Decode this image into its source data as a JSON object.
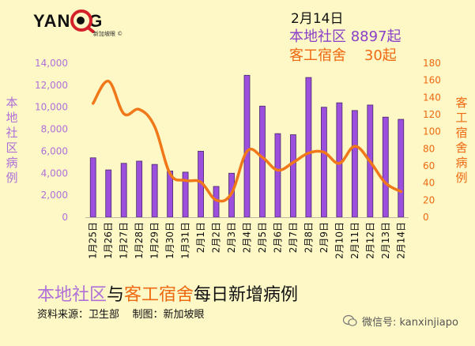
{
  "brand": {
    "logo_text": "YAN  SG",
    "logo_sub": "新加坡眼 ©"
  },
  "header": {
    "date": "2月14日",
    "line1": "本地社区 8897起",
    "line2": "客工宿舍    30起"
  },
  "footer": {
    "title_part1": "本地社区",
    "title_part2": "与",
    "title_part3": "客工宿舍",
    "title_part4": "每日新增病例",
    "source": "资料来源：卫生部    制图：新加坡眼",
    "wechat": "微信号: kanxinjiapo"
  },
  "chart_data": {
    "type": "bar+line",
    "title": "本地社区与客工宿舍每日新增病例",
    "categories": [
      "1月25日",
      "1月26日",
      "1月27日",
      "1月28日",
      "1月29日",
      "1月30日",
      "1月31日",
      "2月1日",
      "2月2日",
      "2月3日",
      "2月4日",
      "2月5日",
      "2月6日",
      "2月7日",
      "2月8日",
      "2月9日",
      "2月10日",
      "2月11日",
      "2月12日",
      "2月13日",
      "2月14日"
    ],
    "series": [
      {
        "name": "本地社区",
        "type": "bar",
        "axis": "left",
        "color": "#9b4fdc",
        "values": [
          5400,
          4300,
          4900,
          5100,
          4800,
          4200,
          4100,
          6000,
          2800,
          4000,
          12900,
          10100,
          7600,
          7500,
          12700,
          10000,
          10400,
          9700,
          10200,
          9100,
          8897
        ]
      },
      {
        "name": "客工宿舍",
        "type": "line",
        "axis": "right",
        "color": "#f07818",
        "values": [
          133,
          159,
          121,
          126,
          106,
          51,
          43,
          41,
          20,
          28,
          77,
          70,
          55,
          64,
          75,
          76,
          63,
          83,
          65,
          40,
          30
        ]
      }
    ],
    "y_left": {
      "label": "本地社区病例",
      "min": 0,
      "max": 14000,
      "ticks": [
        0,
        2000,
        4000,
        6000,
        8000,
        10000,
        12000,
        14000
      ],
      "tick_labels": [
        "0",
        "2,000",
        "4,000",
        "6,000",
        "8,000",
        "10,000",
        "12,000",
        "14,000"
      ]
    },
    "y_right": {
      "label": "客工宿舍病例",
      "min": 0,
      "max": 180,
      "ticks": [
        0,
        20,
        40,
        60,
        80,
        100,
        120,
        140,
        160,
        180
      ],
      "tick_labels": [
        "0",
        "20",
        "40",
        "60",
        "80",
        "100",
        "120",
        "140",
        "160",
        "180"
      ]
    },
    "grid": false,
    "legend": "none"
  }
}
